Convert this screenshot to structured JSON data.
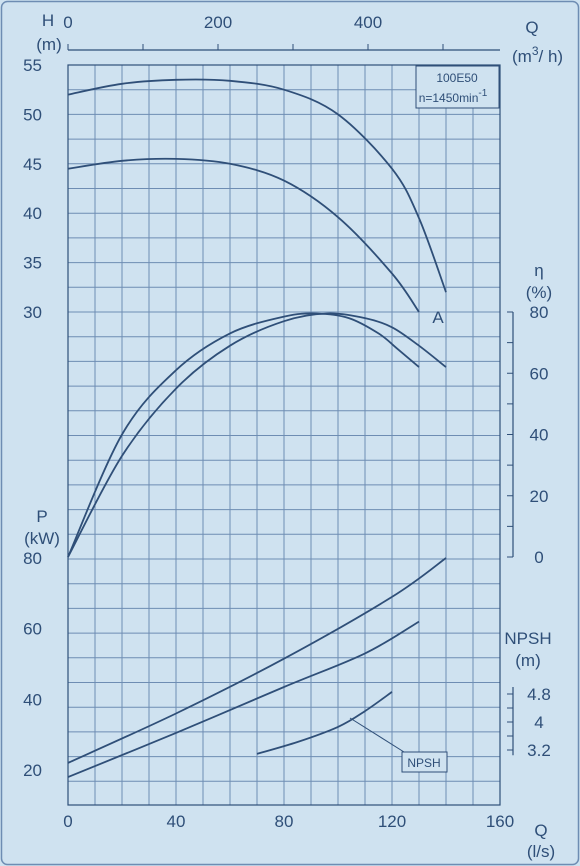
{
  "colors": {
    "background": "#cfe2f0",
    "line": "#2f4f78",
    "grid": "#6e8db3"
  },
  "chart_data": {
    "type": "line",
    "title": "",
    "model_box": {
      "line1": "100E50",
      "line2_main": "n=1450min",
      "line2_sup": "-1"
    },
    "curve_label": "A",
    "npsh_label": "NPSH",
    "x_axis_bottom": {
      "label_top": "Q",
      "label_bottom": "(l/s)",
      "range": [
        0,
        160
      ],
      "ticks": [
        "0",
        "40",
        "80",
        "120",
        "160"
      ]
    },
    "x_axis_top": {
      "label_top": "Q",
      "label_main": "(m",
      "label_sup": "3",
      "label_tail": "/ h)",
      "range": [
        0,
        576
      ],
      "ticks": [
        "0",
        "200",
        "400"
      ]
    },
    "head_axis": {
      "label_top": "H",
      "label_bottom": "(m)",
      "range": [
        30,
        55
      ],
      "ticks": [
        "30",
        "35",
        "40",
        "45",
        "50",
        "55"
      ]
    },
    "efficiency_axis": {
      "label_top": "η",
      "label_bottom": "(%)",
      "range": [
        0,
        80
      ],
      "ticks": [
        "0",
        "20",
        "40",
        "60",
        "80"
      ]
    },
    "power_axis": {
      "label_top": "P",
      "label_bottom": "(kW)",
      "range": [
        20,
        80
      ],
      "ticks": [
        "20",
        "40",
        "60",
        "80"
      ]
    },
    "npsh_axis": {
      "label_top": "NPSH",
      "label_bottom": "(m)",
      "range": [
        3.2,
        4.8
      ],
      "ticks": [
        "3.2",
        "4",
        "4.8"
      ]
    },
    "series": [
      {
        "group": "head",
        "x": [
          0,
          20,
          40,
          60,
          80,
          100,
          120,
          130,
          140
        ],
        "y": [
          52.0,
          53.1,
          53.5,
          53.4,
          52.5,
          50.0,
          44.5,
          39.5,
          32.0
        ]
      },
      {
        "group": "head",
        "x": [
          0,
          20,
          40,
          60,
          80,
          100,
          120,
          130
        ],
        "y": [
          44.5,
          45.3,
          45.5,
          45.0,
          43.3,
          39.6,
          33.9,
          30.0
        ]
      },
      {
        "group": "efficiency",
        "x": [
          0,
          20,
          40,
          60,
          80,
          96,
          110,
          120,
          130,
          140
        ],
        "y": [
          0,
          33,
          55,
          69,
          77,
          79.5,
          78,
          75,
          69,
          62
        ]
      },
      {
        "group": "efficiency",
        "x": [
          0,
          20,
          40,
          60,
          80,
          92,
          104,
          115,
          122,
          130
        ],
        "y": [
          0,
          40,
          61,
          73,
          78.5,
          79.5,
          78,
          73,
          68,
          62
        ]
      },
      {
        "group": "power",
        "x": [
          0,
          40,
          80,
          120,
          140
        ],
        "y": [
          22,
          36,
          51.5,
          69,
          80
        ]
      },
      {
        "group": "power",
        "x": [
          0,
          40,
          80,
          110,
          130
        ],
        "y": [
          18,
          30.5,
          43.5,
          53,
          62
        ]
      },
      {
        "group": "npsh",
        "x": [
          70,
          85,
          100,
          110,
          120
        ],
        "y": [
          3.09,
          3.43,
          3.86,
          4.31,
          4.86
        ]
      }
    ]
  }
}
